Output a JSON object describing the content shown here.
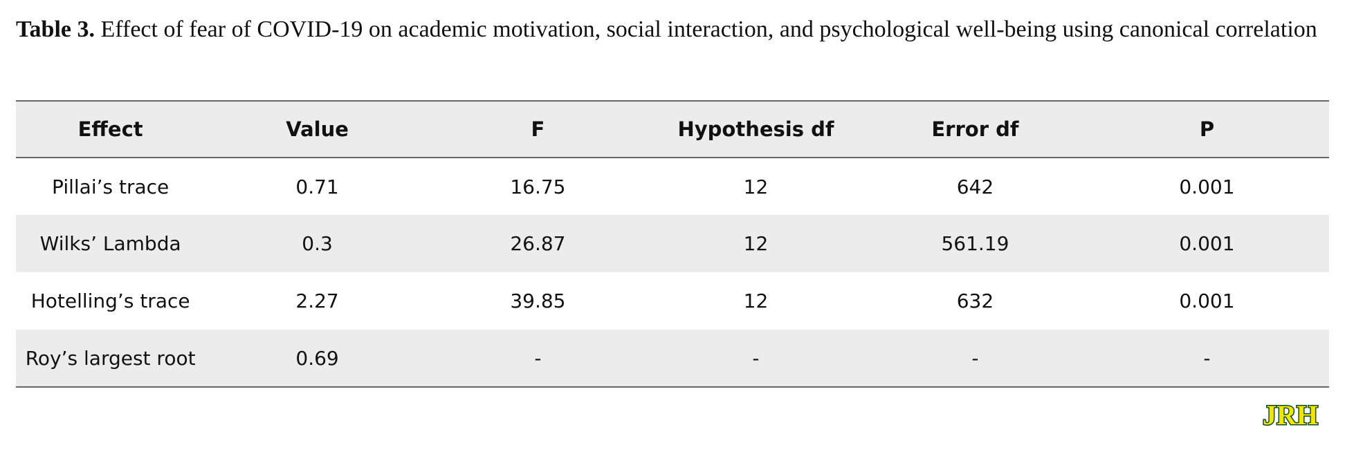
{
  "caption": {
    "label": "Table 3.",
    "text": " Effect of fear of COVID-19 on academic motivation, social interaction, and psychological well-being using canonical correlation"
  },
  "table": {
    "headers": [
      "Effect",
      "Value",
      "F",
      "Hypothesis df",
      "Error df",
      "P"
    ],
    "rows": [
      [
        "Pillai’s trace",
        "0.71",
        "16.75",
        "12",
        "642",
        "0.001"
      ],
      [
        "Wilks’ Lambda",
        "0.3",
        "26.87",
        "12",
        "561.19",
        "0.001"
      ],
      [
        "Hotelling’s trace",
        "2.27",
        "39.85",
        "12",
        "632",
        "0.001"
      ],
      [
        "Roy’s largest root",
        "0.69",
        "-",
        "-",
        "-",
        "-"
      ]
    ]
  },
  "logo": {
    "text": "JRH",
    "colors": {
      "fill": "#f2e500",
      "outline": "#0f4a2a"
    }
  }
}
